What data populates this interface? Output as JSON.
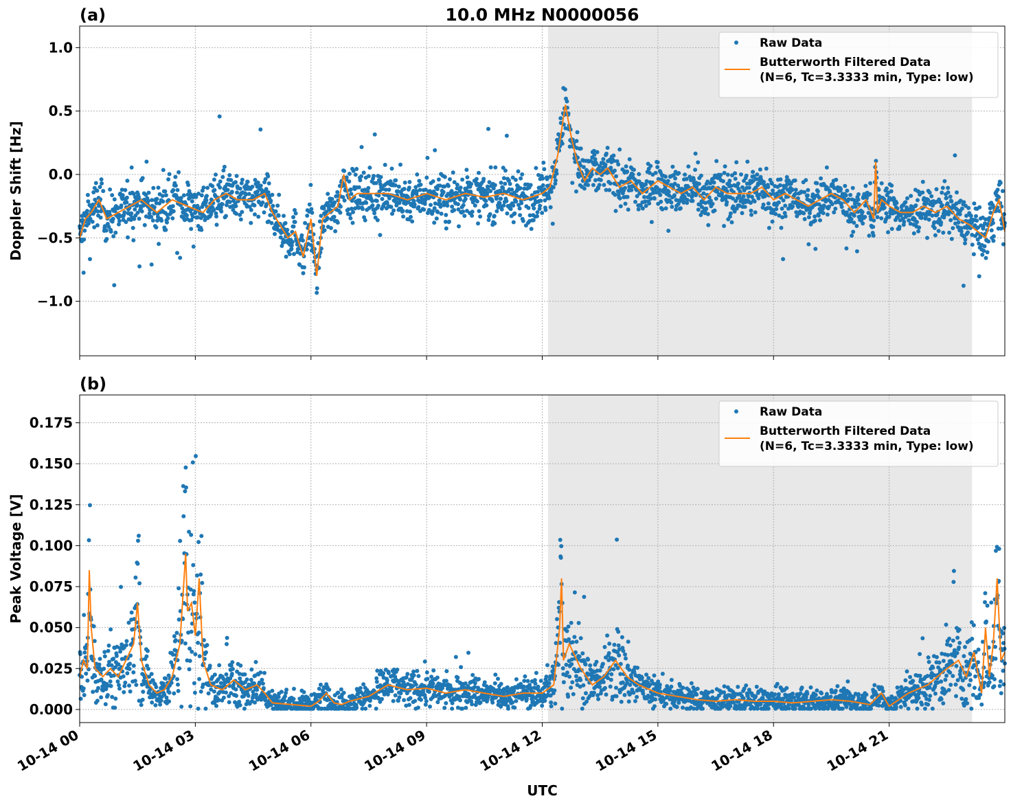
{
  "figure": {
    "title": "10.0 MHz N0000056",
    "xlabel": "UTC"
  },
  "colors": {
    "raw": "#1f77b4",
    "filtered": "#ff7f0e",
    "shade": "#e8e8e8",
    "grid": "#b0b0b0"
  },
  "legend": {
    "raw_label": "Raw Data",
    "filtered_label_line1": "Butterworth Filtered Data",
    "filtered_label_line2": "(N=6, Tc=3.3333 min, Type: low)",
    "placement": "top-right"
  },
  "chart_data": [
    {
      "type": "scatter",
      "panel_label": "(a)",
      "ylabel": "Doppler Shift [Hz]",
      "xlim_hours": [
        0,
        24
      ],
      "ylim": [
        -1.43,
        1.17
      ],
      "yticks": [
        1.0,
        0.5,
        0.0,
        -0.5,
        -1.0
      ],
      "ytick_labels": [
        "1.0",
        "0.5",
        "0.0",
        "−0.5",
        "−1.0"
      ],
      "xticks_hours": [
        0,
        3,
        6,
        9,
        12,
        15,
        18,
        21
      ],
      "xtick_labels": [
        "10-14 00",
        "10-14 03",
        "10-14 06",
        "10-14 09",
        "10-14 12",
        "10-14 15",
        "10-14 18",
        "10-14 21"
      ],
      "shaded_interval_hours": [
        12.15,
        23.15
      ],
      "grid": true,
      "series": [
        {
          "name": "Butterworth Filtered Data",
          "x_hours": [
            0,
            0.15,
            0.3,
            0.5,
            0.7,
            1.0,
            1.3,
            1.6,
            2.0,
            2.4,
            2.8,
            3.2,
            3.5,
            3.8,
            4.1,
            4.5,
            4.8,
            5.0,
            5.2,
            5.4,
            5.6,
            5.8,
            6.0,
            6.15,
            6.3,
            6.5,
            6.7,
            6.85,
            7.0,
            7.2,
            7.5,
            8,
            8.5,
            9,
            9.5,
            10,
            10.5,
            11,
            11.5,
            12,
            12.2,
            12.4,
            12.5,
            12.6,
            12.75,
            12.9,
            13.1,
            13.3,
            13.5,
            13.7,
            14.0,
            14.3,
            14.6,
            15.0,
            15.3,
            15.6,
            15.9,
            16.2,
            16.5,
            16.8,
            17.1,
            17.4,
            17.7,
            18.0,
            18.3,
            18.6,
            18.9,
            19.2,
            19.5,
            19.8,
            20.1,
            20.4,
            20.6,
            20.65,
            20.7,
            20.8,
            21.0,
            21.3,
            21.6,
            21.9,
            22.2,
            22.5,
            22.8,
            23.1,
            23.3,
            23.5,
            23.7,
            23.85,
            24.0
          ],
          "y": [
            -0.5,
            -0.35,
            -0.3,
            -0.2,
            -0.35,
            -0.3,
            -0.25,
            -0.2,
            -0.3,
            -0.2,
            -0.25,
            -0.3,
            -0.2,
            -0.15,
            -0.2,
            -0.2,
            -0.15,
            -0.3,
            -0.4,
            -0.5,
            -0.45,
            -0.65,
            -0.35,
            -0.8,
            -0.35,
            -0.3,
            -0.25,
            0.0,
            -0.2,
            -0.15,
            -0.15,
            -0.15,
            -0.2,
            -0.15,
            -0.2,
            -0.15,
            -0.18,
            -0.15,
            -0.2,
            -0.15,
            -0.1,
            0.15,
            0.35,
            0.55,
            0.3,
            0.1,
            -0.05,
            0.05,
            0.0,
            0.05,
            -0.1,
            -0.05,
            -0.15,
            -0.05,
            -0.1,
            -0.15,
            -0.1,
            -0.2,
            -0.1,
            -0.15,
            -0.15,
            -0.15,
            -0.1,
            -0.2,
            -0.15,
            -0.2,
            -0.25,
            -0.2,
            -0.15,
            -0.2,
            -0.3,
            -0.2,
            -0.35,
            0.1,
            -0.3,
            -0.2,
            -0.25,
            -0.3,
            -0.3,
            -0.25,
            -0.3,
            -0.25,
            -0.35,
            -0.4,
            -0.45,
            -0.5,
            -0.3,
            -0.2,
            -0.45
          ]
        }
      ]
    },
    {
      "type": "scatter",
      "panel_label": "(b)",
      "ylabel": "Peak Voltage [V]",
      "xlim_hours": [
        0,
        24
      ],
      "ylim": [
        -0.008,
        0.192
      ],
      "yticks": [
        0.175,
        0.15,
        0.125,
        0.1,
        0.075,
        0.05,
        0.025,
        0.0
      ],
      "ytick_labels": [
        "0.175",
        "0.150",
        "0.125",
        "0.100",
        "0.075",
        "0.050",
        "0.025",
        "0.000"
      ],
      "xticks_hours": [
        0,
        3,
        6,
        9,
        12,
        15,
        18,
        21
      ],
      "xtick_labels": [
        "10-14 00",
        "10-14 03",
        "10-14 06",
        "10-14 09",
        "10-14 12",
        "10-14 15",
        "10-14 18",
        "10-14 21"
      ],
      "shaded_interval_hours": [
        12.15,
        23.15
      ],
      "grid": true,
      "series": [
        {
          "name": "Butterworth Filtered Data",
          "x_hours": [
            0,
            0.1,
            0.2,
            0.25,
            0.3,
            0.4,
            0.6,
            0.8,
            1.0,
            1.2,
            1.4,
            1.5,
            1.6,
            1.8,
            2.0,
            2.2,
            2.4,
            2.6,
            2.75,
            2.8,
            2.9,
            3.0,
            3.1,
            3.2,
            3.4,
            3.7,
            4.0,
            4.3,
            4.6,
            4.8,
            5.0,
            5.5,
            6.0,
            6.2,
            6.4,
            6.6,
            6.8,
            7.0,
            7.5,
            8.0,
            8.5,
            9.0,
            9.5,
            10.0,
            10.5,
            11.0,
            11.5,
            12.0,
            12.3,
            12.45,
            12.5,
            12.55,
            12.7,
            13.0,
            13.3,
            13.6,
            13.9,
            14.2,
            14.5,
            15.0,
            15.5,
            16.0,
            16.5,
            17.0,
            17.5,
            18.0,
            18.5,
            19.0,
            19.5,
            20.0,
            20.5,
            20.8,
            21.0,
            21.5,
            22.0,
            22.5,
            22.8,
            23.0,
            23.2,
            23.4,
            23.5,
            23.6,
            23.7,
            23.8,
            23.9,
            24.0
          ],
          "y": [
            0.02,
            0.03,
            0.025,
            0.085,
            0.05,
            0.025,
            0.02,
            0.025,
            0.02,
            0.03,
            0.04,
            0.065,
            0.03,
            0.015,
            0.01,
            0.012,
            0.02,
            0.04,
            0.095,
            0.06,
            0.065,
            0.045,
            0.08,
            0.03,
            0.015,
            0.012,
            0.018,
            0.012,
            0.015,
            0.01,
            0.004,
            0.003,
            0.002,
            0.005,
            0.01,
            0.004,
            0.003,
            0.005,
            0.008,
            0.015,
            0.012,
            0.013,
            0.01,
            0.012,
            0.01,
            0.008,
            0.01,
            0.01,
            0.015,
            0.05,
            0.08,
            0.03,
            0.04,
            0.025,
            0.015,
            0.02,
            0.03,
            0.02,
            0.015,
            0.01,
            0.008,
            0.006,
            0.005,
            0.006,
            0.005,
            0.005,
            0.004,
            0.005,
            0.006,
            0.005,
            0.003,
            0.01,
            0.002,
            0.01,
            0.015,
            0.025,
            0.03,
            0.02,
            0.035,
            0.01,
            0.05,
            0.02,
            0.04,
            0.08,
            0.03,
            0.035
          ]
        }
      ]
    }
  ]
}
